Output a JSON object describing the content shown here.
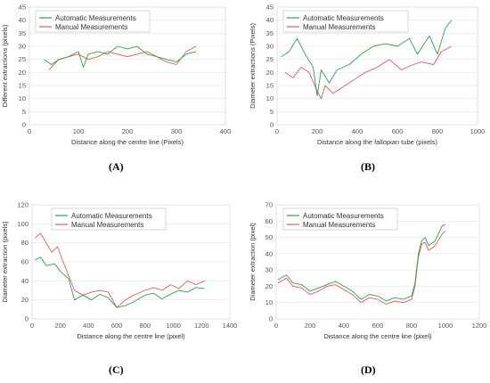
{
  "chart_data": [
    {
      "type": "line",
      "panel_label": "(A)",
      "xlabel": "Distance along the centre line  (Pixels)",
      "ylabel": "Different extractions (pixels)",
      "xlim": [
        0,
        400
      ],
      "ylim": [
        0,
        45
      ],
      "xticks": [
        0,
        100,
        200,
        300,
        400
      ],
      "yticks": [
        0,
        5,
        10,
        15,
        20,
        25,
        30,
        35,
        40,
        45
      ],
      "grid": true,
      "legend": "top-left",
      "series": [
        {
          "name": "Automatic Measurements",
          "color": "#2ca24a",
          "x": [
            30,
            45,
            60,
            80,
            100,
            110,
            120,
            140,
            160,
            180,
            200,
            220,
            240,
            260,
            280,
            300,
            320,
            340
          ],
          "y": [
            25,
            23,
            25,
            26,
            28,
            22,
            27,
            28,
            27,
            30,
            29,
            30,
            27,
            26,
            25,
            24,
            27,
            28
          ]
        },
        {
          "name": "Manual Measurements",
          "color": "#e05a5a",
          "x": [
            40,
            60,
            80,
            100,
            120,
            140,
            160,
            180,
            200,
            220,
            240,
            260,
            280,
            300,
            320,
            340
          ],
          "y": [
            21,
            25,
            26,
            27,
            25,
            26,
            28,
            27,
            26,
            27,
            28,
            26,
            24,
            23,
            28,
            30
          ]
        }
      ]
    },
    {
      "type": "line",
      "panel_label": "(B)",
      "xlabel": "Distance along the fallopian tube (pixels)",
      "ylabel": "Diameter extractions (Pixels)",
      "xlim": [
        0,
        1000
      ],
      "ylim": [
        0,
        45
      ],
      "xticks": [
        0,
        200,
        400,
        600,
        800,
        1000
      ],
      "yticks": [
        0,
        5,
        10,
        15,
        20,
        25,
        30,
        35,
        40,
        45
      ],
      "grid": true,
      "legend": "top-left",
      "series": [
        {
          "name": "Automatic Measurements",
          "color": "#2ca24a",
          "x": [
            20,
            60,
            100,
            140,
            180,
            200,
            220,
            260,
            300,
            360,
            420,
            480,
            540,
            600,
            660,
            700,
            760,
            800,
            840,
            870
          ],
          "y": [
            26,
            28,
            33,
            27,
            22,
            11,
            21,
            16,
            21,
            23,
            27,
            30,
            31,
            30,
            33,
            27,
            34,
            27,
            37,
            40
          ]
        },
        {
          "name": "Manual Measurements",
          "color": "#e05a5a",
          "x": [
            40,
            80,
            120,
            160,
            200,
            220,
            240,
            280,
            320,
            380,
            440,
            500,
            560,
            620,
            680,
            720,
            780,
            820,
            870
          ],
          "y": [
            20,
            18,
            22,
            20,
            13,
            10,
            15,
            12,
            14,
            17,
            20,
            22,
            25,
            21,
            23,
            24,
            23,
            28,
            30
          ]
        }
      ]
    },
    {
      "type": "line",
      "panel_label": "(C)",
      "xlabel": "Distance along the centre line (pixel)",
      "ylabel": "Diameter extraction (pixels)",
      "xlim": [
        0,
        1400
      ],
      "ylim": [
        0,
        120
      ],
      "xticks": [
        0,
        200,
        400,
        600,
        800,
        1000,
        1200,
        1400
      ],
      "yticks": [
        0,
        20,
        40,
        60,
        80,
        100,
        120
      ],
      "grid": true,
      "legend": "top-right",
      "series": [
        {
          "name": "Automatic Measurements",
          "color": "#2ca24a",
          "x": [
            20,
            60,
            100,
            160,
            200,
            260,
            300,
            360,
            420,
            480,
            540,
            600,
            660,
            720,
            800,
            860,
            920,
            980,
            1040,
            1100,
            1160,
            1220
          ],
          "y": [
            62,
            65,
            56,
            58,
            50,
            42,
            20,
            25,
            20,
            26,
            22,
            12,
            14,
            18,
            25,
            27,
            21,
            26,
            30,
            28,
            33,
            32
          ]
        },
        {
          "name": "Manual Measurements",
          "color": "#e05a5a",
          "x": [
            20,
            60,
            100,
            140,
            180,
            220,
            260,
            300,
            360,
            420,
            480,
            540,
            600,
            660,
            720,
            800,
            860,
            920,
            980,
            1040,
            1100,
            1160,
            1220
          ],
          "y": [
            85,
            90,
            80,
            70,
            76,
            60,
            45,
            30,
            25,
            28,
            30,
            28,
            12,
            20,
            25,
            30,
            33,
            30,
            36,
            32,
            40,
            36,
            40
          ]
        }
      ]
    },
    {
      "type": "line",
      "panel_label": "(D)",
      "xlabel": "Distance along the centre line (pixel)",
      "ylabel": "Diameter extraction (pixel)",
      "xlim": [
        0,
        1200
      ],
      "ylim": [
        0,
        70
      ],
      "xticks": [
        0,
        200,
        400,
        600,
        800,
        1000,
        1200
      ],
      "yticks": [
        0,
        10,
        20,
        30,
        40,
        50,
        60,
        70
      ],
      "grid": true,
      "legend": "top-left",
      "series": [
        {
          "name": "Automatic Measurements",
          "color": "#2ca24a",
          "x": [
            10,
            60,
            100,
            150,
            200,
            250,
            300,
            350,
            400,
            450,
            500,
            550,
            600,
            650,
            700,
            750,
            800,
            820,
            840,
            860,
            880,
            900,
            940,
            980,
            1000
          ],
          "y": [
            24,
            27,
            22,
            21,
            17,
            19,
            21,
            23,
            20,
            17,
            12,
            15,
            14,
            11,
            13,
            12,
            14,
            22,
            40,
            48,
            50,
            45,
            48,
            57,
            58
          ]
        },
        {
          "name": "Manual Measurements",
          "color": "#e05a5a",
          "x": [
            10,
            60,
            100,
            150,
            200,
            250,
            300,
            350,
            400,
            450,
            500,
            550,
            600,
            650,
            700,
            750,
            800,
            820,
            840,
            860,
            880,
            900,
            940,
            980,
            1000
          ],
          "y": [
            22,
            25,
            20,
            19,
            15,
            17,
            20,
            21,
            18,
            15,
            10,
            13,
            12,
            9,
            11,
            10,
            12,
            20,
            38,
            46,
            47,
            42,
            45,
            52,
            54
          ]
        }
      ]
    }
  ]
}
